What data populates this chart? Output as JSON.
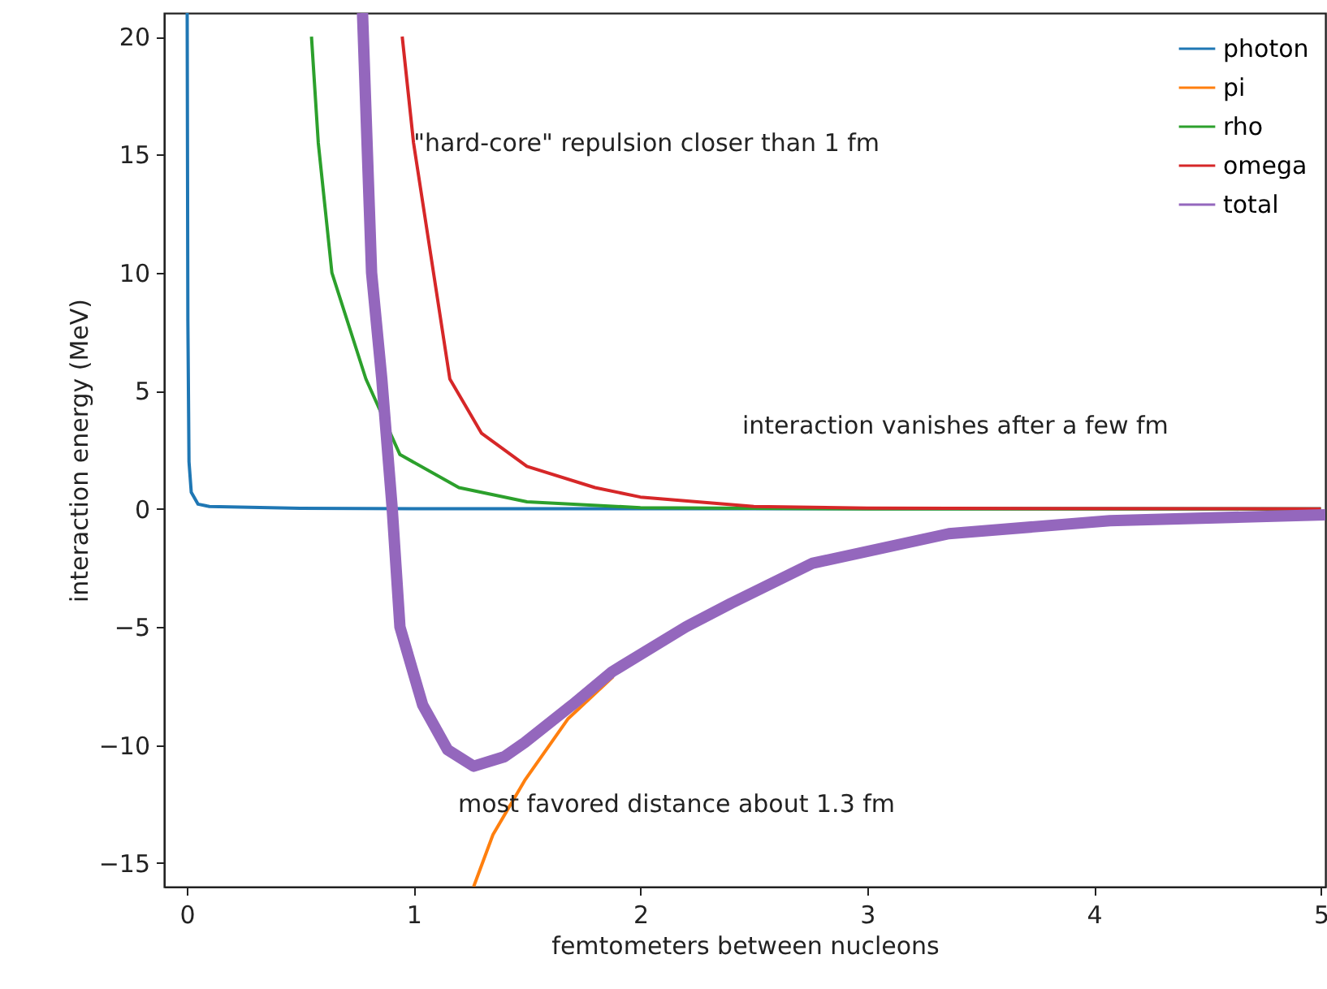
{
  "chart_data": {
    "type": "line",
    "xlabel": "femtometers between nucleons",
    "ylabel": "interaction energy (MeV)",
    "xlim": [
      -0.1,
      5.02
    ],
    "ylim": [
      -16,
      21
    ],
    "xticks": [
      0,
      1,
      2,
      3,
      4,
      5
    ],
    "yticks": [
      -15,
      -10,
      -5,
      0,
      5,
      10,
      15,
      20
    ],
    "grid": false,
    "legend": "top right",
    "series": [
      {
        "name": "photon",
        "color": "#1f77b4",
        "x": [
          0.002,
          0.005,
          0.01,
          0.02,
          0.05,
          0.1,
          0.5,
          1,
          5
        ],
        "values": [
          21,
          8,
          2,
          0.7,
          0.2,
          0.1,
          0.02,
          0.01,
          0
        ]
      },
      {
        "name": "pi",
        "color": "#ff7f0e",
        "x": [
          1.265,
          1.35,
          1.49,
          1.68,
          1.88
        ],
        "values": [
          -16,
          -13.8,
          -11.5,
          -8.9,
          -7.1
        ]
      },
      {
        "name": "rho",
        "color": "#2ca02c",
        "x": [
          0.55,
          0.58,
          0.64,
          0.79,
          0.94,
          1.2,
          1.5,
          2,
          3,
          5
        ],
        "values": [
          20,
          15.5,
          10,
          5.5,
          2.3,
          0.9,
          0.3,
          0.05,
          0,
          0
        ]
      },
      {
        "name": "omega",
        "color": "#d62728",
        "x": [
          0.95,
          1,
          1.16,
          1.3,
          1.5,
          1.8,
          2,
          2.5,
          3,
          5
        ],
        "values": [
          20,
          15.5,
          5.5,
          3.2,
          1.8,
          0.9,
          0.5,
          0.1,
          0.03,
          0
        ]
      },
      {
        "name": "total",
        "color": "#9467bd",
        "x": [
          0.775,
          0.815,
          0.86,
          0.906,
          0.94,
          1.04,
          1.15,
          1.265,
          1.4,
          1.49,
          1.7,
          1.875,
          2.2,
          2.4,
          2.76,
          3.36,
          4.07,
          5.02
        ],
        "values": [
          21,
          10,
          5.5,
          0,
          -5,
          -8.3,
          -10.2,
          -10.9,
          -10.5,
          -9.9,
          -8.3,
          -6.9,
          -5,
          -4,
          -2.3,
          -1.05,
          -0.5,
          -0.25
        ]
      }
    ],
    "annotations": [
      {
        "text": "\"hard-core\" repulsion closer than 1 fm",
        "x": 1.0,
        "y": 15.5
      },
      "interaction vanishes after a few fm",
      "most favored distance about 1.3 fm"
    ]
  }
}
